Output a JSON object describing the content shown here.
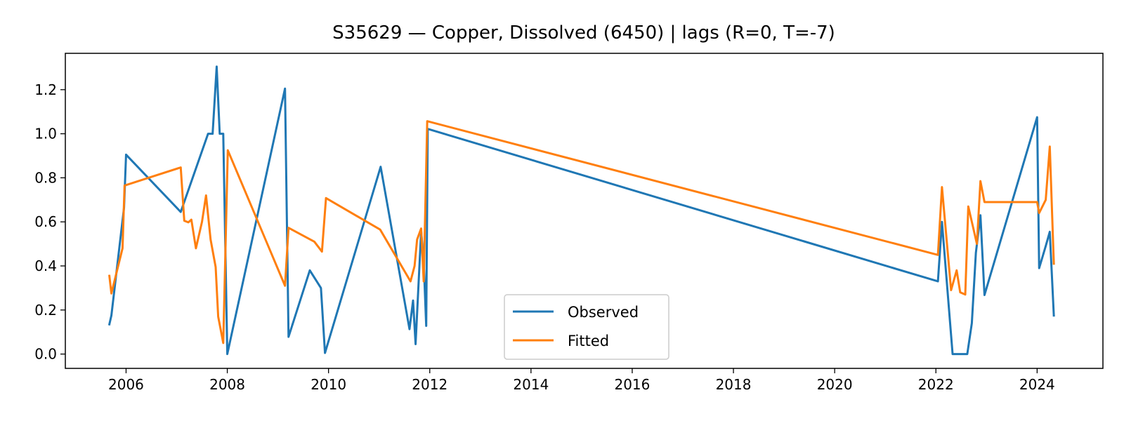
{
  "chart_data": {
    "type": "line",
    "title": "S35629 — Copper, Dissolved (6450) | lags (R=0, T=-7)",
    "xlabel": "",
    "ylabel": "",
    "x_axis_kind": "year",
    "xlim": [
      2004.8,
      2025.3
    ],
    "ylim": [
      -0.065,
      1.365
    ],
    "x_ticks": [
      2006,
      2008,
      2010,
      2012,
      2014,
      2016,
      2018,
      2020,
      2022,
      2024
    ],
    "x_tick_labels": [
      "2006",
      "2008",
      "2010",
      "2012",
      "2014",
      "2016",
      "2018",
      "2020",
      "2022",
      "2024"
    ],
    "y_ticks": [
      0.0,
      0.2,
      0.4,
      0.6,
      0.8,
      1.0,
      1.2
    ],
    "y_tick_labels": [
      "0.0",
      "0.2",
      "0.4",
      "0.6",
      "0.8",
      "1.0",
      "1.2"
    ],
    "grid": false,
    "legend_position": "bottom-center",
    "series": [
      {
        "name": "Observed",
        "color": "#1f77b4",
        "x": [
          2005.67,
          2005.71,
          2005.96,
          2006.0,
          2007.08,
          2007.62,
          2007.71,
          2007.79,
          2007.85,
          2007.92,
          2008.0,
          2009.14,
          2009.21,
          2009.63,
          2009.85,
          2009.93,
          2011.03,
          2011.6,
          2011.67,
          2011.72,
          2011.83,
          2011.88,
          2011.93,
          2011.96,
          2022.04,
          2022.12,
          2022.33,
          2022.42,
          2022.62,
          2022.71,
          2022.79,
          2022.88,
          2022.96,
          2024.0,
          2024.04,
          2024.17,
          2024.25,
          2024.33
        ],
        "y": [
          0.135,
          0.175,
          0.665,
          0.905,
          0.645,
          1.0,
          1.0,
          1.305,
          1.0,
          1.0,
          0.0,
          1.205,
          0.078,
          0.38,
          0.3,
          0.005,
          0.85,
          0.113,
          0.243,
          0.045,
          0.558,
          0.42,
          0.128,
          1.022,
          0.33,
          0.6,
          0.0,
          0.0,
          0.0,
          0.14,
          0.46,
          0.63,
          0.268,
          1.075,
          0.39,
          0.49,
          0.555,
          0.175
        ]
      },
      {
        "name": "Fitted",
        "color": "#ff7f0e",
        "x": [
          2005.67,
          2005.71,
          2005.93,
          2005.97,
          2007.08,
          2007.15,
          2007.23,
          2007.29,
          2007.38,
          2007.5,
          2007.58,
          2007.67,
          2007.77,
          2007.82,
          2007.92,
          2008.01,
          2009.14,
          2009.21,
          2009.72,
          2009.87,
          2009.95,
          2011.02,
          2011.62,
          2011.7,
          2011.75,
          2011.83,
          2011.88,
          2011.95,
          2022.04,
          2022.12,
          2022.3,
          2022.41,
          2022.48,
          2022.58,
          2022.64,
          2022.81,
          2022.88,
          2022.96,
          2024.0,
          2024.04,
          2024.17,
          2024.25,
          2024.33
        ],
        "y": [
          0.355,
          0.275,
          0.48,
          0.765,
          0.847,
          0.605,
          0.598,
          0.61,
          0.48,
          0.6,
          0.72,
          0.52,
          0.395,
          0.17,
          0.05,
          0.925,
          0.31,
          0.573,
          0.51,
          0.465,
          0.708,
          0.565,
          0.33,
          0.4,
          0.52,
          0.57,
          0.33,
          1.057,
          0.45,
          0.758,
          0.29,
          0.38,
          0.28,
          0.27,
          0.67,
          0.5,
          0.785,
          0.69,
          0.69,
          0.64,
          0.7,
          0.942,
          0.41
        ]
      }
    ]
  }
}
